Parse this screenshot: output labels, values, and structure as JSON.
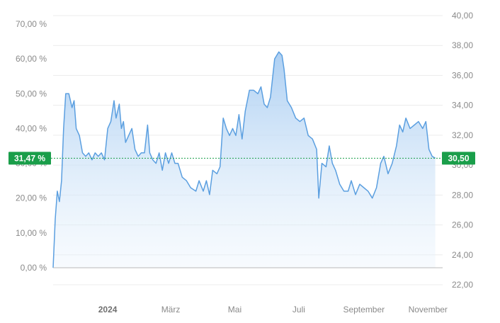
{
  "chart_data": {
    "type": "area",
    "left_axis": {
      "ticks": [
        0,
        10,
        20,
        30,
        40,
        50,
        60,
        70
      ],
      "tick_labels": [
        "0,00 %",
        "10,00 %",
        "20,00 %",
        "30,00 %",
        "40,00 %",
        "50,00 %",
        "60,00 %",
        "70,00 %"
      ],
      "range": [
        0,
        70
      ]
    },
    "right_axis": {
      "ticks": [
        22,
        24,
        26,
        28,
        30,
        32,
        34,
        36,
        38,
        40
      ],
      "tick_labels": [
        "22,00",
        "24,00",
        "26,00",
        "28,00",
        "30,00",
        "32,00",
        "34,00",
        "36,00",
        "38,00",
        "40,00"
      ],
      "range": [
        22,
        40
      ]
    },
    "x_axis": {
      "start": "2023-11-10",
      "end": "2024-11-15",
      "ticks": [
        {
          "date": "2024-01-01",
          "label": "2024",
          "bold": true
        },
        {
          "date": "2024-03-01",
          "label": "März",
          "bold": false
        },
        {
          "date": "2024-05-01",
          "label": "Mai",
          "bold": false
        },
        {
          "date": "2024-07-01",
          "label": "Juli",
          "bold": false
        },
        {
          "date": "2024-09-01",
          "label": "September",
          "bold": false
        },
        {
          "date": "2024-11-01",
          "label": "November",
          "bold": false
        }
      ]
    },
    "series": [
      {
        "color": "#5b9fe0",
        "points": [
          [
            "2023-11-10",
            0
          ],
          [
            "2023-11-12",
            14
          ],
          [
            "2023-11-14",
            22
          ],
          [
            "2023-11-16",
            19
          ],
          [
            "2023-11-18",
            25
          ],
          [
            "2023-11-20",
            40
          ],
          [
            "2023-11-22",
            50
          ],
          [
            "2023-11-25",
            50
          ],
          [
            "2023-11-28",
            46
          ],
          [
            "2023-11-30",
            48
          ],
          [
            "2023-12-02",
            40
          ],
          [
            "2023-12-05",
            38
          ],
          [
            "2023-12-08",
            33
          ],
          [
            "2023-12-11",
            32
          ],
          [
            "2023-12-14",
            33
          ],
          [
            "2023-12-17",
            31
          ],
          [
            "2023-12-20",
            33
          ],
          [
            "2023-12-23",
            32
          ],
          [
            "2023-12-26",
            33
          ],
          [
            "2023-12-29",
            31
          ],
          [
            "2024-01-01",
            40
          ],
          [
            "2024-01-04",
            42
          ],
          [
            "2024-01-07",
            48
          ],
          [
            "2024-01-09",
            43
          ],
          [
            "2024-01-12",
            47
          ],
          [
            "2024-01-14",
            40
          ],
          [
            "2024-01-16",
            42
          ],
          [
            "2024-01-18",
            36
          ],
          [
            "2024-01-21",
            38
          ],
          [
            "2024-01-24",
            40
          ],
          [
            "2024-01-27",
            34
          ],
          [
            "2024-01-30",
            32
          ],
          [
            "2024-02-02",
            33
          ],
          [
            "2024-02-05",
            33
          ],
          [
            "2024-02-08",
            41
          ],
          [
            "2024-02-10",
            33
          ],
          [
            "2024-02-13",
            31
          ],
          [
            "2024-02-16",
            30
          ],
          [
            "2024-02-19",
            33
          ],
          [
            "2024-02-22",
            28
          ],
          [
            "2024-02-25",
            33
          ],
          [
            "2024-02-28",
            30
          ],
          [
            "2024-03-02",
            33
          ],
          [
            "2024-03-05",
            30
          ],
          [
            "2024-03-08",
            30
          ],
          [
            "2024-03-12",
            26
          ],
          [
            "2024-03-16",
            25
          ],
          [
            "2024-03-20",
            23
          ],
          [
            "2024-03-25",
            22
          ],
          [
            "2024-03-28",
            25
          ],
          [
            "2024-04-01",
            22
          ],
          [
            "2024-04-04",
            25
          ],
          [
            "2024-04-07",
            21
          ],
          [
            "2024-04-10",
            28
          ],
          [
            "2024-04-14",
            27
          ],
          [
            "2024-04-17",
            29
          ],
          [
            "2024-04-20",
            43
          ],
          [
            "2024-04-23",
            40
          ],
          [
            "2024-04-26",
            38
          ],
          [
            "2024-04-29",
            40
          ],
          [
            "2024-05-02",
            38
          ],
          [
            "2024-05-05",
            44
          ],
          [
            "2024-05-08",
            37
          ],
          [
            "2024-05-11",
            45
          ],
          [
            "2024-05-15",
            51
          ],
          [
            "2024-05-19",
            51
          ],
          [
            "2024-05-23",
            50
          ],
          [
            "2024-05-26",
            52
          ],
          [
            "2024-05-29",
            47
          ],
          [
            "2024-06-01",
            46
          ],
          [
            "2024-06-04",
            49
          ],
          [
            "2024-06-08",
            60
          ],
          [
            "2024-06-12",
            62
          ],
          [
            "2024-06-15",
            61
          ],
          [
            "2024-06-17",
            57
          ],
          [
            "2024-06-20",
            48
          ],
          [
            "2024-06-24",
            46
          ],
          [
            "2024-06-28",
            43
          ],
          [
            "2024-07-02",
            42
          ],
          [
            "2024-07-06",
            43
          ],
          [
            "2024-07-10",
            38
          ],
          [
            "2024-07-14",
            37
          ],
          [
            "2024-07-18",
            34
          ],
          [
            "2024-07-20",
            20
          ],
          [
            "2024-07-23",
            30
          ],
          [
            "2024-07-27",
            29
          ],
          [
            "2024-07-30",
            35
          ],
          [
            "2024-08-02",
            30
          ],
          [
            "2024-08-05",
            28
          ],
          [
            "2024-08-09",
            24
          ],
          [
            "2024-08-13",
            22
          ],
          [
            "2024-08-17",
            22
          ],
          [
            "2024-08-20",
            25
          ],
          [
            "2024-08-24",
            21
          ],
          [
            "2024-08-28",
            24
          ],
          [
            "2024-09-01",
            23
          ],
          [
            "2024-09-05",
            22
          ],
          [
            "2024-09-09",
            20
          ],
          [
            "2024-09-13",
            23
          ],
          [
            "2024-09-17",
            30
          ],
          [
            "2024-09-20",
            32
          ],
          [
            "2024-09-24",
            27
          ],
          [
            "2024-09-28",
            30
          ],
          [
            "2024-10-02",
            35
          ],
          [
            "2024-10-05",
            41
          ],
          [
            "2024-10-08",
            39
          ],
          [
            "2024-10-11",
            43
          ],
          [
            "2024-10-15",
            40
          ],
          [
            "2024-10-19",
            41
          ],
          [
            "2024-10-23",
            42
          ],
          [
            "2024-10-27",
            40
          ],
          [
            "2024-10-30",
            42
          ],
          [
            "2024-11-02",
            34
          ],
          [
            "2024-11-05",
            32
          ],
          [
            "2024-11-08",
            31.47
          ]
        ]
      }
    ],
    "current_left": 31.47,
    "current_left_label": "31,47 %",
    "current_right_label": "30,50",
    "accent_color": "#1a9e4a",
    "grid": true
  }
}
